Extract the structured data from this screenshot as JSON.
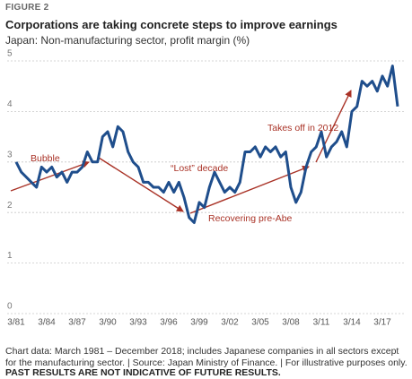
{
  "chart_data": {
    "type": "line",
    "figure_label": "FIGURE 2",
    "title": "Corporations are taking concrete steps to improve earnings",
    "subtitle": "Japan: Non-manufacturing sector, profit margin (%)",
    "note": "Chart data: March 1981 – December 2018; includes Japanese companies in all sectors except for the manufacturing sector. | Source: Japan Ministry of Finance. | For illustrative purposes only.",
    "disclaimer": "PAST RESULTS ARE NOT INDICATIVE OF FUTURE RESULTS.",
    "annotations": [
      "Bubble",
      "“Lost” decade",
      "Recovering pre-Abe",
      "Takes off in 2012"
    ],
    "categories": [
      "3/81",
      null,
      null,
      null,
      null,
      null,
      "3/84",
      null,
      null,
      null,
      null,
      null,
      "3/87",
      null,
      null,
      null,
      null,
      null,
      "3/90",
      null,
      null,
      null,
      null,
      null,
      "3/93",
      null,
      null,
      null,
      null,
      null,
      "3/96",
      null,
      null,
      null,
      null,
      null,
      "3/99",
      null,
      null,
      null,
      null,
      null,
      "3/02",
      null,
      null,
      null,
      null,
      null,
      "3/05",
      null,
      null,
      null,
      null,
      null,
      "3/08",
      null,
      null,
      null,
      null,
      null,
      "3/11",
      null,
      null,
      null,
      null,
      null,
      "3/14",
      null,
      null,
      null,
      null,
      null,
      "3/17",
      null,
      null,
      null
    ],
    "series": [
      {
        "name": "Profit margin",
        "color": "#1f4e8c",
        "values": [
          3.0,
          2.8,
          2.7,
          2.6,
          2.5,
          2.9,
          2.8,
          2.9,
          2.7,
          2.8,
          2.6,
          2.8,
          2.8,
          2.9,
          3.2,
          3.0,
          3.0,
          3.5,
          3.6,
          3.3,
          3.7,
          3.6,
          3.2,
          3.0,
          2.9,
          2.6,
          2.6,
          2.5,
          2.5,
          2.4,
          2.6,
          2.4,
          2.6,
          2.3,
          1.9,
          1.8,
          2.2,
          2.1,
          2.5,
          2.8,
          2.6,
          2.4,
          2.5,
          2.4,
          2.6,
          3.2,
          3.2,
          3.3,
          3.1,
          3.3,
          3.2,
          3.3,
          3.1,
          3.2,
          2.5,
          2.2,
          2.4,
          2.9,
          3.2,
          3.3,
          3.6,
          3.1,
          3.3,
          3.4,
          3.6,
          3.3,
          4.0,
          4.1,
          4.6,
          4.5,
          4.6,
          4.4,
          4.7,
          4.5,
          4.9,
          4.1
        ]
      }
    ],
    "ylim": [
      0,
      5
    ],
    "yticks": [
      0,
      1,
      2,
      3,
      4,
      5
    ],
    "grid": true
  }
}
